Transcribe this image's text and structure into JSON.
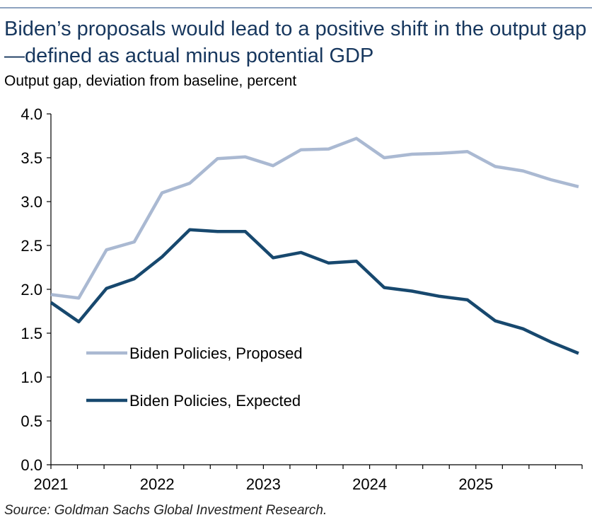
{
  "header": {
    "title": "Biden’s proposals would lead to a positive shift in the output gap—defined as actual minus potential GDP",
    "subtitle": "Output gap, deviation from baseline, percent"
  },
  "footer": {
    "source": "Source: Goldman Sachs Global Investment Research."
  },
  "chart_data": {
    "type": "line",
    "title": "Biden’s proposals would lead to a positive shift in the output gap—defined as actual minus potential GDP",
    "subtitle": "Output gap, deviation from baseline, percent",
    "xlabel": "",
    "ylabel": "",
    "ylim": [
      0,
      4
    ],
    "y_ticks": [
      "0.0",
      "0.5",
      "1.0",
      "1.5",
      "2.0",
      "2.5",
      "3.0",
      "3.5",
      "4.0"
    ],
    "x_tick_labels": [
      "2021",
      "2022",
      "2023",
      "2024",
      "2025"
    ],
    "grid": false,
    "legend_position": "lower-left",
    "x": [
      "2021Q1",
      "2021Q2",
      "2021Q3",
      "2021Q4",
      "2022Q1",
      "2022Q2",
      "2022Q3",
      "2022Q4",
      "2023Q1",
      "2023Q2",
      "2023Q3",
      "2023Q4",
      "2024Q1",
      "2024Q2",
      "2024Q3",
      "2024Q4",
      "2025Q1",
      "2025Q2",
      "2025Q3",
      "2025Q4"
    ],
    "series": [
      {
        "name": "Biden Policies, Proposed",
        "color": "#aab9d2",
        "values": [
          1.94,
          1.9,
          2.45,
          2.54,
          3.1,
          3.21,
          3.49,
          3.51,
          3.41,
          3.59,
          3.6,
          3.72,
          3.5,
          3.54,
          3.55,
          3.57,
          3.4,
          3.35,
          3.25,
          3.17
        ]
      },
      {
        "name": "Biden Policies, Expected",
        "color": "#17486e",
        "values": [
          1.85,
          1.63,
          2.01,
          2.12,
          2.37,
          2.68,
          2.66,
          2.66,
          2.36,
          2.42,
          2.3,
          2.32,
          2.02,
          1.98,
          1.92,
          1.88,
          1.64,
          1.55,
          1.4,
          1.27
        ]
      }
    ]
  }
}
